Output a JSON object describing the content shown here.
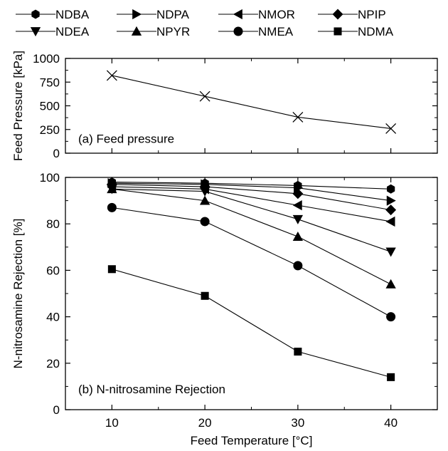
{
  "chart_data": [
    {
      "type": "line",
      "panel": "top",
      "annotation": "(a) Feed pressure",
      "ylabel": "Feed Pressure [kPa]",
      "xlabel": "",
      "xlim": [
        5,
        45
      ],
      "ylim": [
        0,
        1000
      ],
      "yticks": [
        0,
        250,
        500,
        750,
        1000
      ],
      "xticks": [
        10,
        20,
        30,
        40
      ],
      "show_x_tick_labels": false,
      "grid": false,
      "series": [
        {
          "marker": "x",
          "x": [
            10,
            20,
            30,
            40
          ],
          "values": [
            820,
            600,
            380,
            260
          ]
        }
      ]
    },
    {
      "type": "line",
      "panel": "bottom",
      "annotation": "(b) N-nitrosamine Rejection",
      "ylabel": "N-nitrosamine Rejection [%]",
      "xlabel": "Feed Temperature [°C]",
      "xlim": [
        5,
        45
      ],
      "ylim": [
        0,
        100
      ],
      "yticks": [
        0,
        20,
        40,
        60,
        80,
        100
      ],
      "xticks": [
        10,
        20,
        30,
        40
      ],
      "x_tick_labels": [
        "10",
        "20",
        "30",
        "40"
      ],
      "grid": false,
      "legend_position": "top",
      "series": [
        {
          "name": "NDBA",
          "marker": "hexagon",
          "x": [
            10,
            20,
            30,
            40
          ],
          "values": [
            98,
            97.5,
            96.5,
            95
          ]
        },
        {
          "name": "NDPA",
          "marker": "triangle-right",
          "x": [
            10,
            20,
            30,
            40
          ],
          "values": [
            97.5,
            97,
            95.5,
            90
          ]
        },
        {
          "name": "NMOR",
          "marker": "triangle-left",
          "x": [
            10,
            20,
            30,
            40
          ],
          "values": [
            96,
            95,
            88,
            81
          ]
        },
        {
          "name": "NPIP",
          "marker": "diamond",
          "x": [
            10,
            20,
            30,
            40
          ],
          "values": [
            97,
            96,
            93,
            86
          ]
        },
        {
          "name": "NDEA",
          "marker": "triangle-down",
          "x": [
            10,
            20,
            30,
            40
          ],
          "values": [
            95,
            94,
            82,
            68
          ]
        },
        {
          "name": "NPYR",
          "marker": "triangle-up",
          "x": [
            10,
            20,
            30,
            40
          ],
          "values": [
            95,
            90,
            74.5,
            54
          ]
        },
        {
          "name": "NMEA",
          "marker": "circle",
          "x": [
            10,
            20,
            30,
            40
          ],
          "values": [
            87,
            81,
            62,
            40
          ]
        },
        {
          "name": "NDMA",
          "marker": "square",
          "x": [
            10,
            20,
            30,
            40
          ],
          "values": [
            60.5,
            49,
            25,
            14
          ]
        }
      ]
    }
  ]
}
